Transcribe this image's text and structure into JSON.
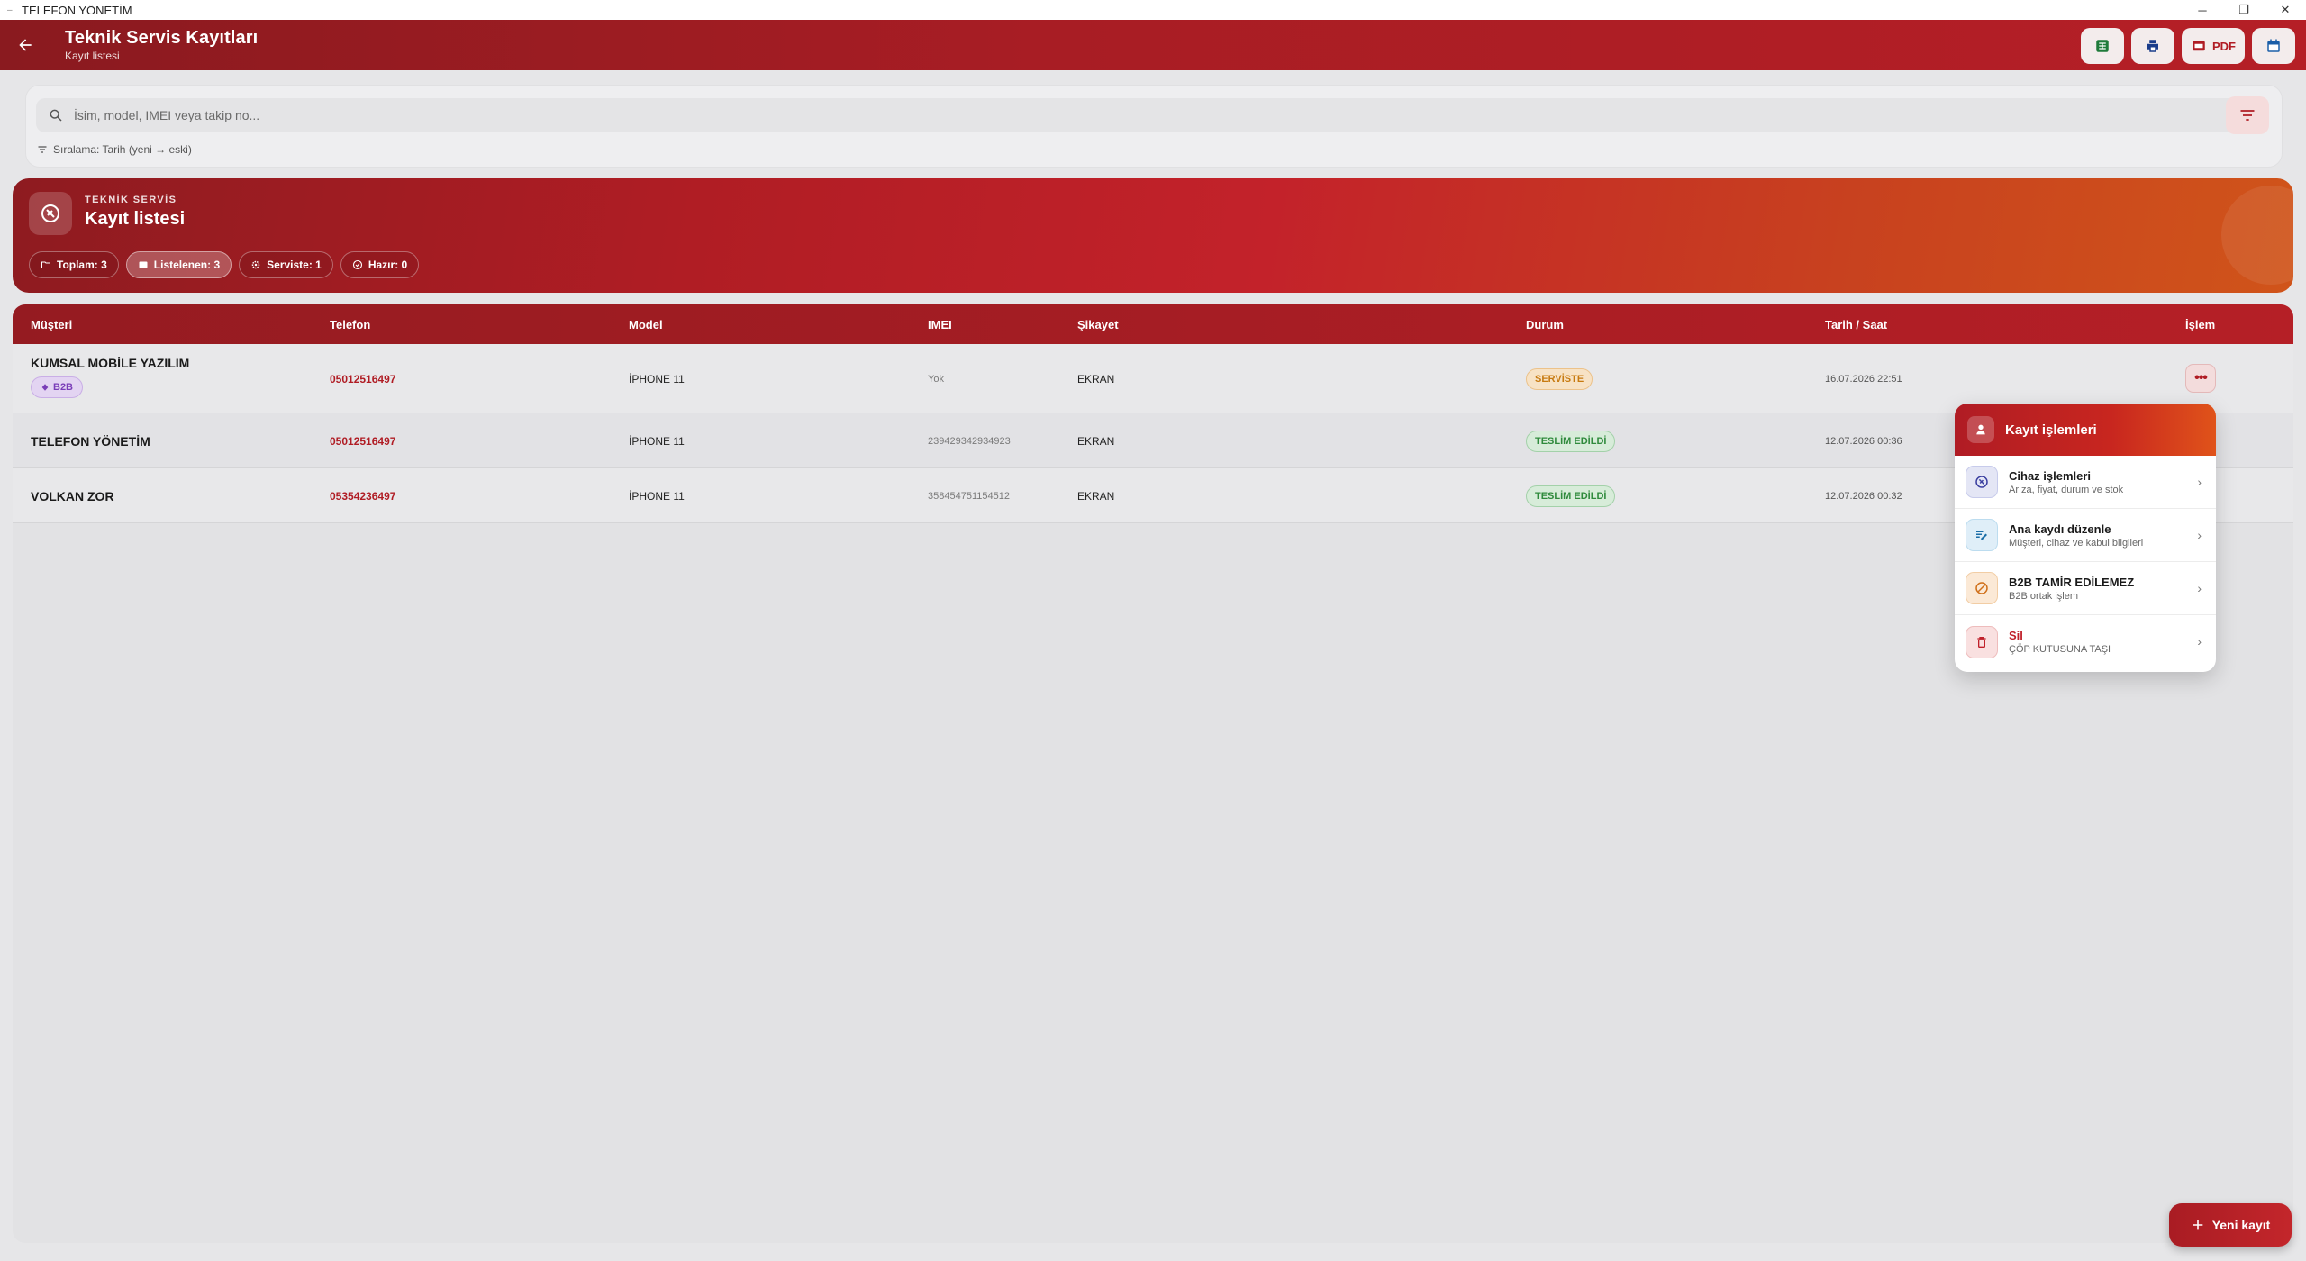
{
  "window": {
    "title": "TELEFON YÖNETİM",
    "controls": {
      "minimize": "─",
      "restore": "❐",
      "close": "✕"
    }
  },
  "appbar": {
    "title": "Teknik Servis Kayıtları",
    "subtitle": "Kayıt listesi",
    "actions": {
      "excel": "excel-icon",
      "print": "printer-icon",
      "pdf_label": "PDF",
      "calendar": "calendar-icon"
    }
  },
  "search": {
    "placeholder": "İsim, model, IMEI veya takip no...",
    "value": "",
    "sort_label": "Sıralama: Tarih (yeni → eski)"
  },
  "banner": {
    "kicker": "TEKNİK SERVİS",
    "title": "Kayıt listesi",
    "chips": [
      {
        "label": "Toplam: 3",
        "icon": "folder-icon"
      },
      {
        "label": "Listelenen: 3",
        "icon": "list-icon"
      },
      {
        "label": "Serviste: 1",
        "icon": "gear-icon"
      },
      {
        "label": "Hazır: 0",
        "icon": "check-circle-icon"
      }
    ]
  },
  "table": {
    "headers": {
      "customer": "Müşteri",
      "phone": "Telefon",
      "model": "Model",
      "imei": "IMEI",
      "complaint": "Şikayet",
      "status": "Durum",
      "datetime": "Tarih / Saat",
      "action": "İşlem"
    },
    "rows": [
      {
        "customer": "KUMSAL MOBİLE YAZILIM",
        "badge": "B2B",
        "phone": "05012516497",
        "model": "İPHONE 11",
        "imei": "Yok",
        "complaint": "EKRAN",
        "status": "SERVİSTE",
        "status_color": "#c77a10",
        "datetime": "16.07.2026 22:51"
      },
      {
        "customer": "TELEFON YÖNETİM",
        "phone": "05012516497",
        "model": "İPHONE 11",
        "imei": "239429342934923",
        "complaint": "EKRAN",
        "status": "TESLİM EDİLDİ",
        "status_color": "#2f8a3c",
        "datetime": "12.07.2026 00:36"
      },
      {
        "customer": "VOLKAN ZOR",
        "phone": "05354236497",
        "model": "İPHONE 11",
        "imei": "358454751154512",
        "complaint": "EKRAN",
        "status": "TESLİM EDİLDİ",
        "status_color": "#2f8a3c",
        "datetime": "12.07.2026 00:32"
      }
    ],
    "more_label": "•••"
  },
  "popup": {
    "title": "Kayıt işlemleri",
    "items": [
      {
        "title": "Cihaz işlemleri",
        "subtitle": "Arıza, fiyat, durum ve stok",
        "icon": "wrench-icon"
      },
      {
        "title": "Ana kaydı düzenle",
        "subtitle": "Müşteri, cihaz ve kabul bilgileri",
        "icon": "edit-icon"
      },
      {
        "title": "B2B TAMİR EDİLEMEZ",
        "subtitle": "B2B ortak işlem",
        "icon": "block-icon"
      },
      {
        "title": "Sil",
        "subtitle": "ÇÖP KUTUSUNA TAŞI",
        "icon": "trash-icon"
      }
    ]
  },
  "fab": {
    "label": "Yeni kayıt"
  },
  "colors": {
    "primary": "#b01c24",
    "accent_orange": "#d0541a",
    "b2b_purple": "#7a3db8"
  }
}
